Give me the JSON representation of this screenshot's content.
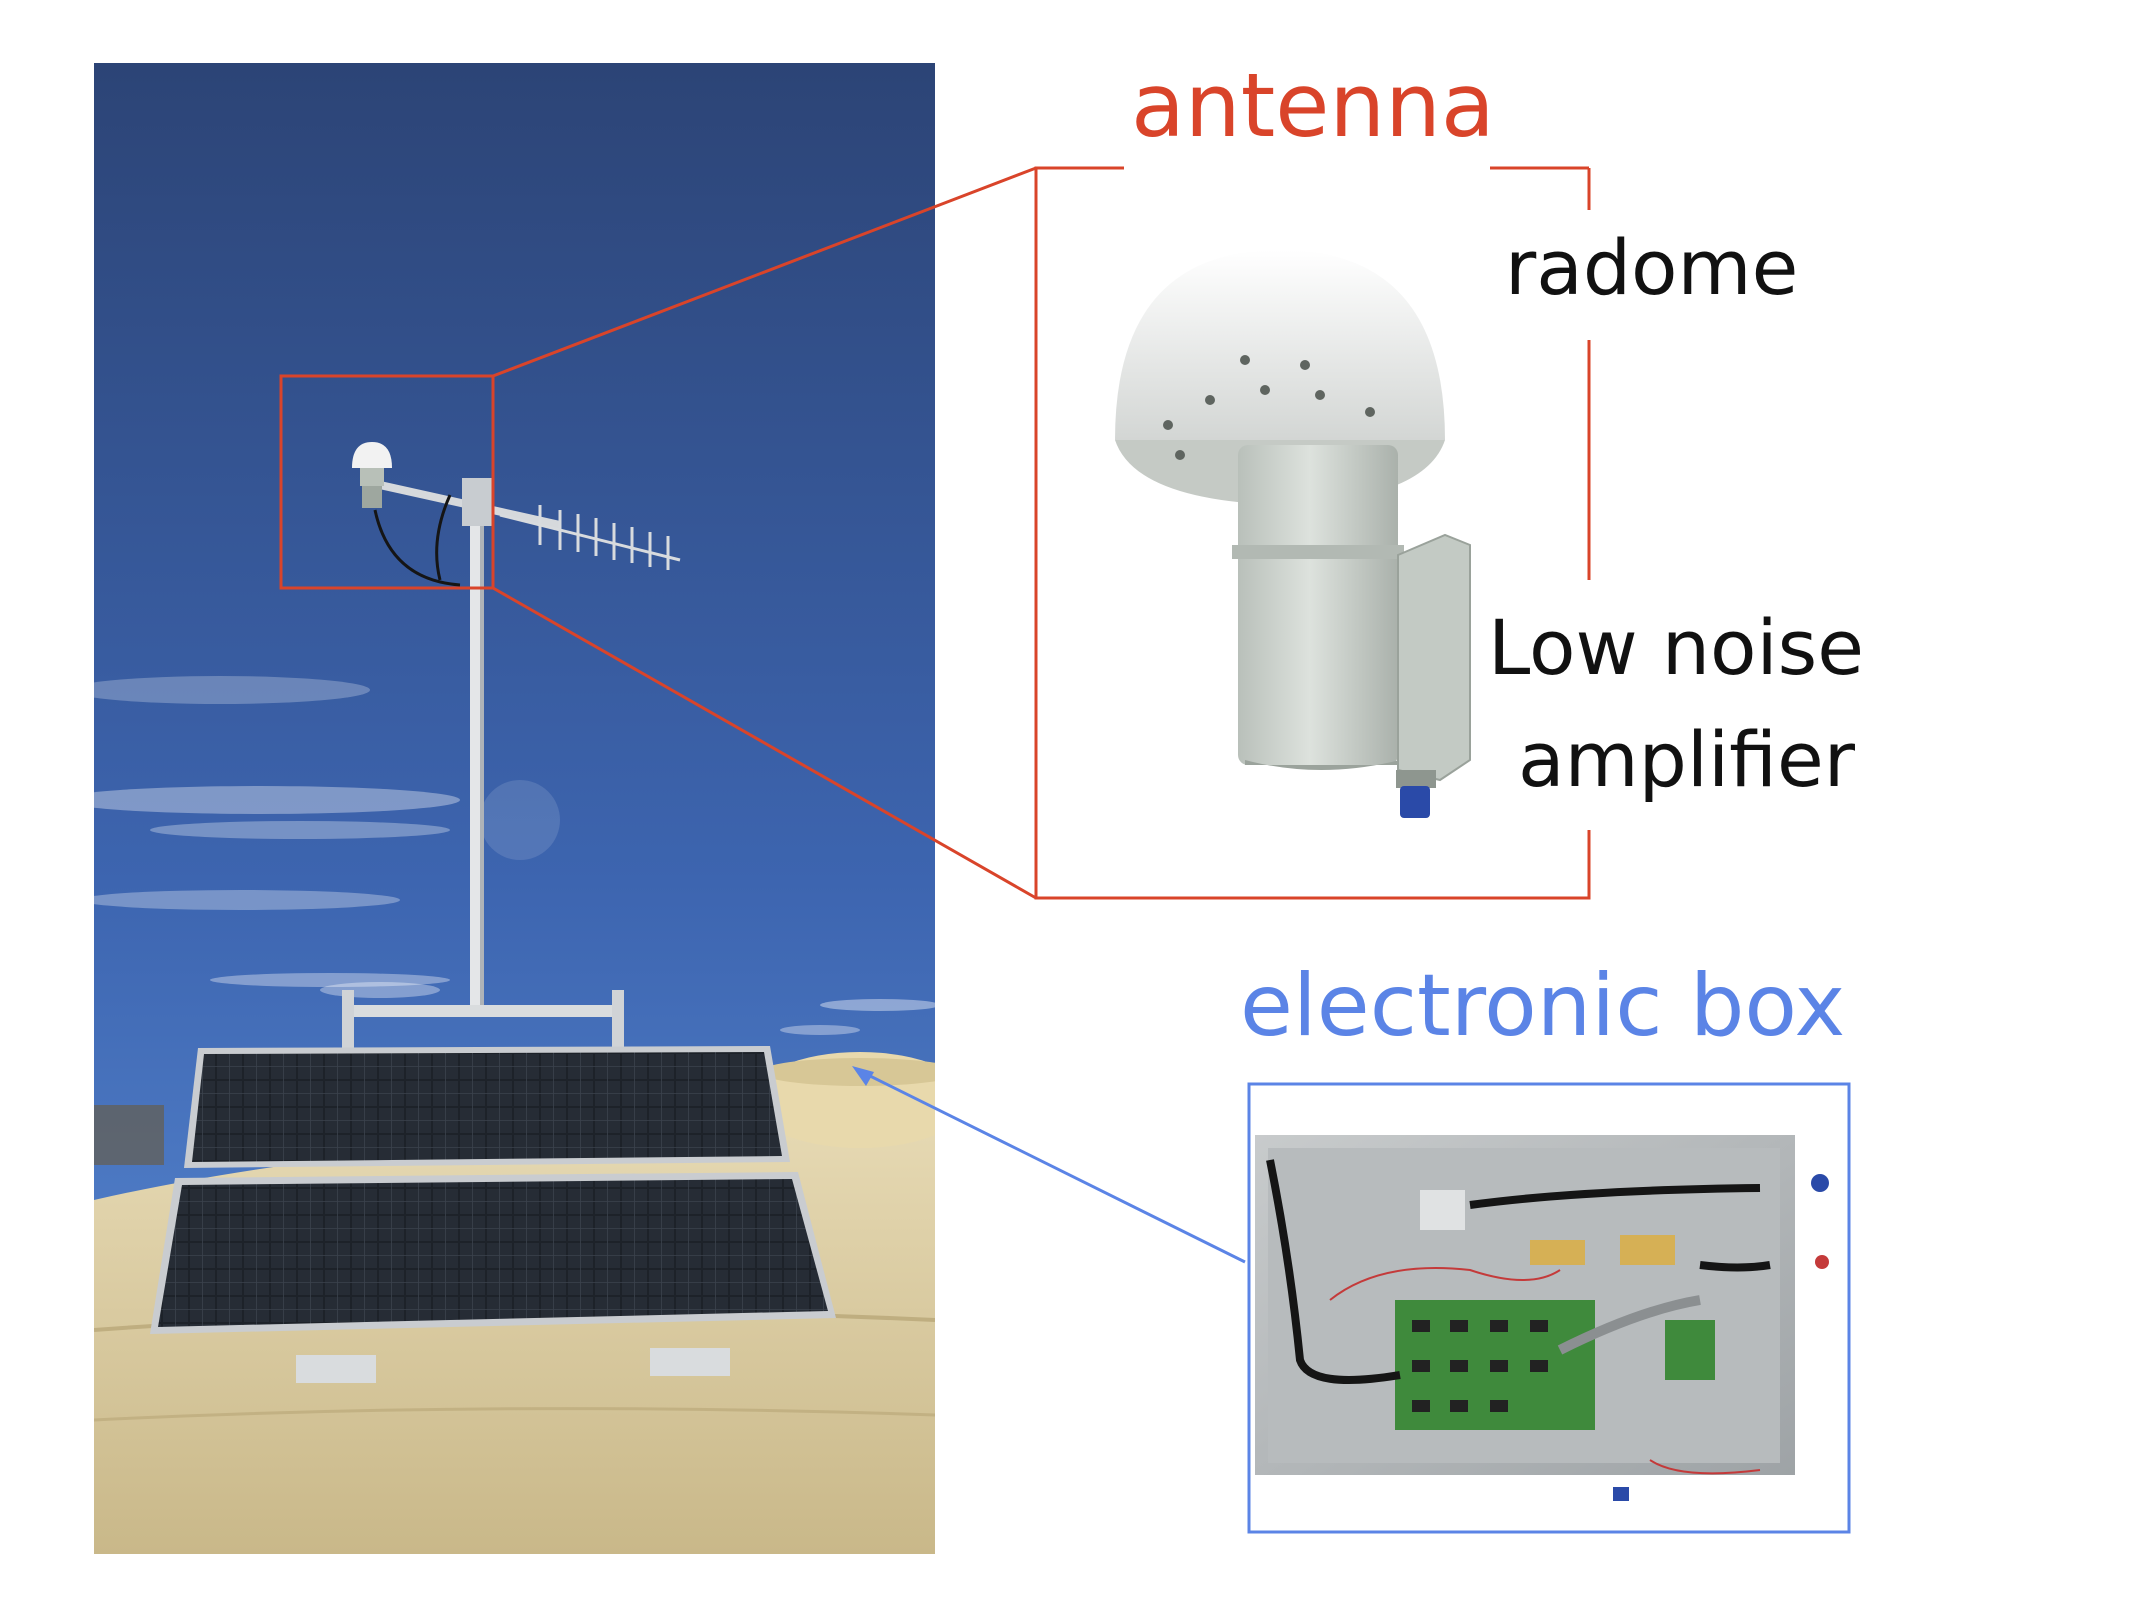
{
  "labels": {
    "antenna": "antenna",
    "radome": "radome",
    "lna_line1": "Low noise",
    "lna_line2": "amplifier",
    "electronic_box": "electronic box"
  },
  "colors": {
    "antenna_accent": "#d9442a",
    "electronic_box_accent": "#5b84e6",
    "sky_top": "#2c4476",
    "sky_bottom": "#4b7fd0",
    "ground": "#d8c9a0",
    "label_text": "#111111"
  },
  "elements": [
    "photo-sky-panel",
    "gps-antenna-radome",
    "yagi-antenna",
    "mast-pole",
    "solar-panel-upper",
    "solar-panel-lower",
    "antenna-zoom-photo",
    "electronic-box-photo"
  ]
}
